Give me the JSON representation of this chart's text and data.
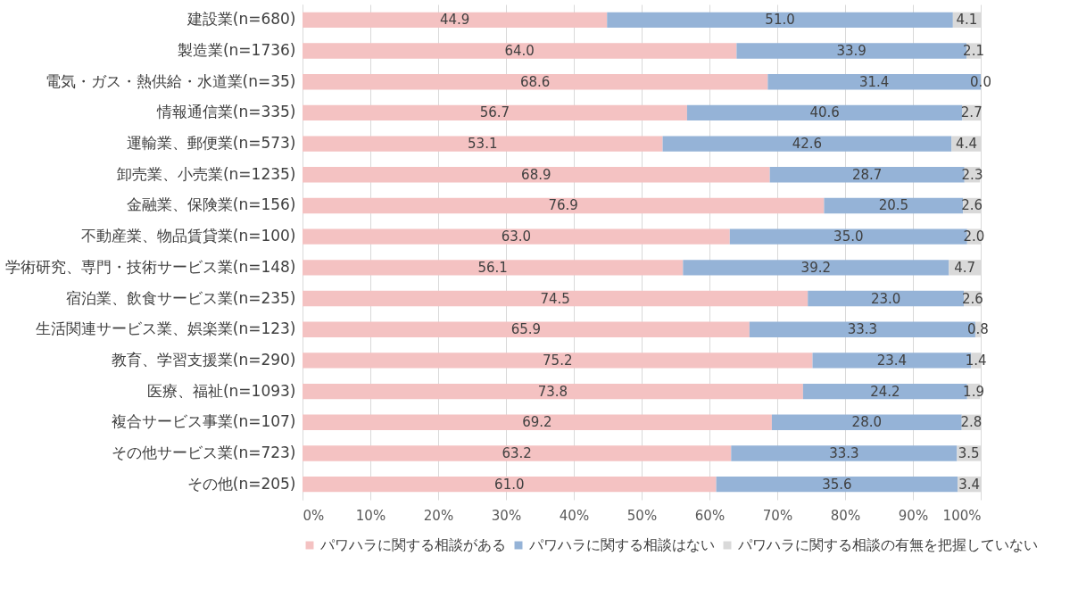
{
  "chart_data": {
    "type": "bar",
    "orientation": "horizontal",
    "stacked": true,
    "categories": [
      "建設業(n=680)",
      "製造業(n=1736)",
      "電気・ガス・熱供給・水道業(n=35)",
      "情報通信業(n=335)",
      "運輸業、郵便業(n=573)",
      "卸売業、小売業(n=1235)",
      "金融業、保険業(n=156)",
      "不動産業、物品賃貸業(n=100)",
      "学術研究、専門・技術サービス業(n=148)",
      "宿泊業、飲食サービス業(n=235)",
      "生活関連サービス業、娯楽業(n=123)",
      "教育、学習支援業(n=290)",
      "医療、福祉(n=1093)",
      "複合サービス事業(n=107)",
      "その他サービス業(n=723)",
      "その他(n=205)"
    ],
    "series": [
      {
        "name": "パワハラに関する相談がある",
        "color": "#f4c2c2",
        "values": [
          44.9,
          64.0,
          68.6,
          56.7,
          53.1,
          68.9,
          76.9,
          63.0,
          56.1,
          74.5,
          65.9,
          75.2,
          73.8,
          69.2,
          63.2,
          61.0
        ],
        "value_labels": [
          "44.9",
          "64.0",
          "68.6",
          "56.7",
          "53.1",
          "68.9",
          "76.9",
          "63.0",
          "56.1",
          "74.5",
          "65.9",
          "75.2",
          "73.8",
          "69.2",
          "63.2",
          "61.0"
        ]
      },
      {
        "name": "パワハラに関する相談はない",
        "color": "#95b3d7",
        "values": [
          51.0,
          33.9,
          31.4,
          40.6,
          42.6,
          28.7,
          20.5,
          35.0,
          39.2,
          23.0,
          33.3,
          23.4,
          24.2,
          28.0,
          33.3,
          35.6
        ],
        "value_labels": [
          "51.0",
          "33.9",
          "31.4",
          "40.6",
          "42.6",
          "28.7",
          "20.5",
          "35.0",
          "39.2",
          "23.0",
          "33.3",
          "23.4",
          "24.2",
          "28.0",
          "33.3",
          "35.6"
        ]
      },
      {
        "name": "パワハラに関する相談の有無を把握していない",
        "color": "#d9d9d9",
        "values": [
          4.1,
          2.1,
          0.0,
          2.7,
          4.4,
          2.3,
          2.6,
          2.0,
          4.7,
          2.6,
          0.8,
          1.4,
          1.9,
          2.8,
          3.5,
          3.4
        ],
        "value_labels": [
          "4.1",
          "2.1",
          "0.0",
          "2.7",
          "4.4",
          "2.3",
          "2.6",
          "2.0",
          "4.7",
          "2.6",
          "0.8",
          "1.4",
          "1.9",
          "2.8",
          "3.5",
          "3.4"
        ]
      }
    ],
    "xlim": [
      0,
      100
    ],
    "xticks": [
      {
        "value": 0,
        "label": "0%"
      },
      {
        "value": 10,
        "label": "10%"
      },
      {
        "value": 20,
        "label": "20%"
      },
      {
        "value": 30,
        "label": "30%"
      },
      {
        "value": 40,
        "label": "40%"
      },
      {
        "value": 50,
        "label": "50%"
      },
      {
        "value": 60,
        "label": "60%"
      },
      {
        "value": 70,
        "label": "70%"
      },
      {
        "value": 80,
        "label": "80%"
      },
      {
        "value": 90,
        "label": "90%"
      },
      {
        "value": 100,
        "label": "100%"
      }
    ],
    "grid": "x",
    "legend": "bottom"
  }
}
